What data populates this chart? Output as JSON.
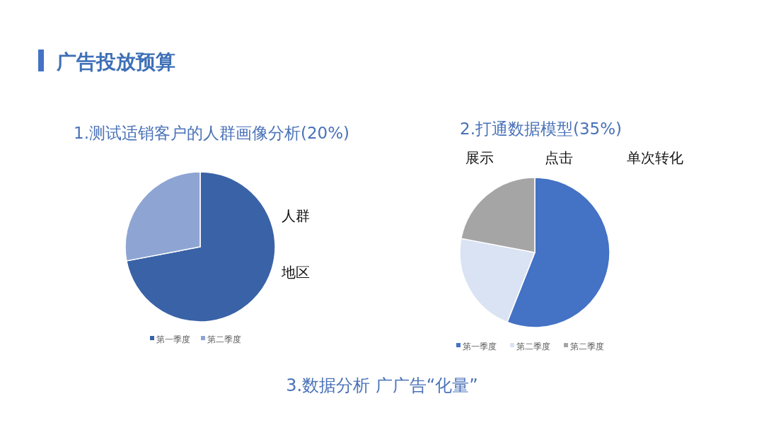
{
  "chart_data": [
    {
      "type": "pie",
      "title": "1.测试适销客户的人群画像分析(20%)",
      "categories": [
        "第一季度",
        "第二季度"
      ],
      "values": [
        72,
        28
      ],
      "colors": [
        "#3a62a7",
        "#8ea5d3"
      ],
      "legend": "bottom",
      "annotations": [
        "人群",
        "地区"
      ]
    },
    {
      "type": "pie",
      "title": "2.打通数据模型(35%)",
      "categories": [
        "第一季度",
        "第二季度",
        "第二季度"
      ],
      "values": [
        56,
        22,
        22
      ],
      "colors": [
        "#4472c4",
        "#dae3f3",
        "#a5a5a5"
      ],
      "legend": "bottom",
      "annotations": [
        "展示",
        "点击",
        "单次转化"
      ]
    },
    {
      "type": "other",
      "title": "广告投放预算",
      "annotations": [
        "3.数据分析  广广告“化量”"
      ]
    }
  ]
}
